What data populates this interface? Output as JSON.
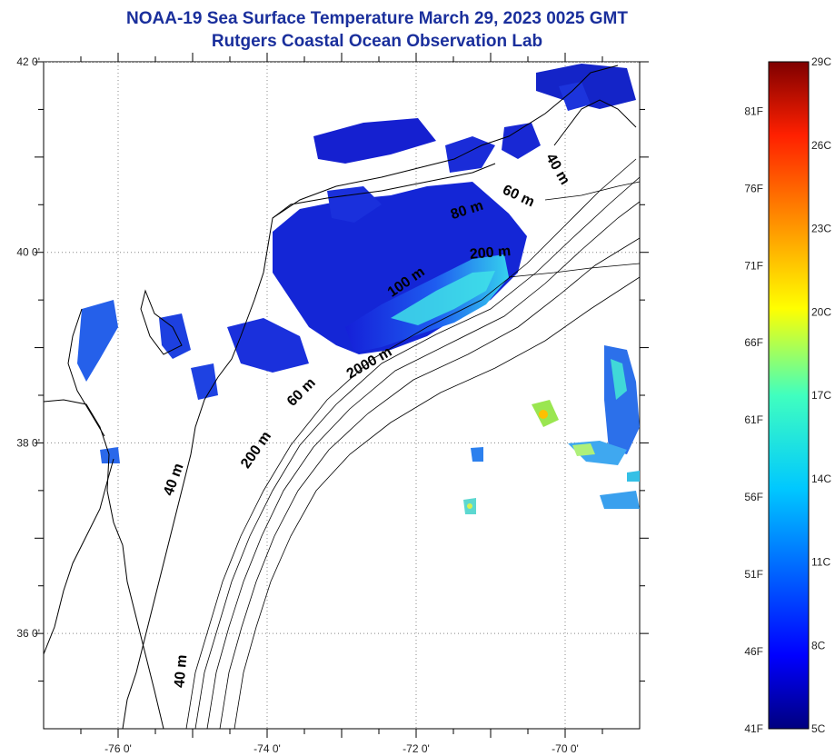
{
  "title": {
    "line1": "NOAA-19 Sea Surface Temperature March 29, 2023 0025 GMT",
    "line2": "Rutgers Coastal Ocean Observation Lab"
  },
  "map": {
    "lat_labels": [
      {
        "value": 42,
        "label": "42 0'"
      },
      {
        "value": 40,
        "label": "40 0'"
      },
      {
        "value": 38,
        "label": "38 0'"
      },
      {
        "value": 36,
        "label": "36 0'"
      }
    ],
    "lon_labels": [
      {
        "value": -76,
        "label": "-76 0'"
      },
      {
        "value": -74,
        "label": "-74 0'"
      },
      {
        "value": -72,
        "label": "-72 0'"
      },
      {
        "value": -70,
        "label": "-70 0'"
      }
    ],
    "lon_range": [
      -77,
      -69
    ],
    "lat_range": [
      35,
      42
    ],
    "contour_labels": [
      {
        "text": "40 m",
        "lon": -70.15,
        "lat": 40.85,
        "angle": 60
      },
      {
        "text": "60 m",
        "lon": -70.65,
        "lat": 40.55,
        "angle": 25
      },
      {
        "text": "80 m",
        "lon": -71.3,
        "lat": 40.4,
        "angle": -18
      },
      {
        "text": "200 m",
        "lon": -71.0,
        "lat": 39.95,
        "angle": -5
      },
      {
        "text": "100 m",
        "lon": -72.1,
        "lat": 39.65,
        "angle": -35
      },
      {
        "text": "2000 m",
        "lon": -72.6,
        "lat": 38.8,
        "angle": -30
      },
      {
        "text": "60 m",
        "lon": -73.5,
        "lat": 38.5,
        "angle": -45
      },
      {
        "text": "200 m",
        "lon": -74.1,
        "lat": 37.9,
        "angle": -55
      },
      {
        "text": "40 m",
        "lon": -75.2,
        "lat": 37.6,
        "angle": -70
      },
      {
        "text": "40 m",
        "lon": -75.1,
        "lat": 35.6,
        "angle": -85
      }
    ]
  },
  "colorbar": {
    "min_c": 5,
    "max_c": 29,
    "celsius_labels": [
      "29C",
      "26C",
      "23C",
      "20C",
      "17C",
      "14C",
      "11C",
      "8C",
      "5C"
    ],
    "fahrenheit_labels": [
      "81F",
      "76F",
      "71F",
      "66F",
      "61F",
      "56F",
      "51F",
      "46F",
      "41F"
    ]
  }
}
